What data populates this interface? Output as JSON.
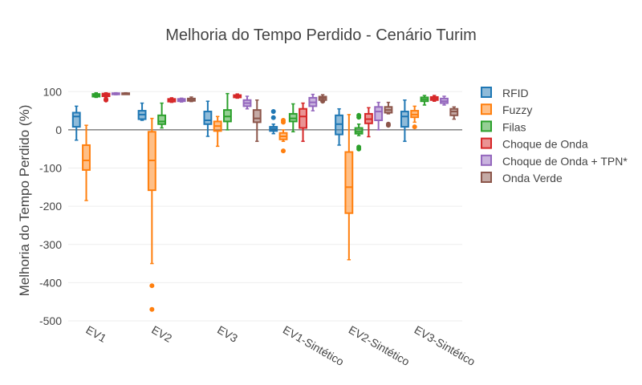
{
  "chart_data": {
    "type": "box",
    "title": "Melhoria do Tempo Perdido - Cenário Turim",
    "xlabel": "",
    "ylabel": "Melhoria do Tempo Perdido (%)",
    "ylim": [
      -500,
      130
    ],
    "yticks": [
      100,
      0,
      -100,
      -200,
      -300,
      -400,
      -500
    ],
    "grid": true,
    "legend_position": "right",
    "categories": [
      "EV1",
      "EV2",
      "EV3",
      "EV1-Sintético",
      "EV2-Sintético",
      "EV3-Sintético"
    ],
    "series": [
      {
        "name": "RFID",
        "color": "#1f77b4",
        "boxes": [
          {
            "min": -27,
            "q1": 8,
            "median": 35,
            "q3": 45,
            "max": 62,
            "outliers": []
          },
          {
            "min": 25,
            "q1": 28,
            "median": 40,
            "q3": 50,
            "max": 70,
            "outliers": []
          },
          {
            "min": -17,
            "q1": 15,
            "median": 25,
            "q3": 48,
            "max": 75,
            "outliers": []
          },
          {
            "min": -10,
            "q1": -3,
            "median": 3,
            "q3": 8,
            "max": 15,
            "outliers": [
              48,
              32
            ]
          },
          {
            "min": -40,
            "q1": -12,
            "median": 15,
            "q3": 38,
            "max": 55,
            "outliers": []
          },
          {
            "min": -30,
            "q1": 8,
            "median": 35,
            "q3": 48,
            "max": 78,
            "outliers": []
          }
        ]
      },
      {
        "name": "Fuzzy",
        "color": "#ff7f0e",
        "boxes": [
          {
            "min": -185,
            "q1": -105,
            "median": -80,
            "q3": -40,
            "max": 12,
            "outliers": []
          },
          {
            "min": -350,
            "q1": -158,
            "median": -80,
            "q3": -5,
            "max": 30,
            "outliers": [
              -408,
              -470
            ]
          },
          {
            "min": -43,
            "q1": -3,
            "median": 10,
            "q3": 22,
            "max": 35,
            "outliers": []
          },
          {
            "min": -30,
            "q1": -25,
            "median": -17,
            "q3": -8,
            "max": 0,
            "outliers": [
              -55,
              20,
              25
            ]
          },
          {
            "min": -340,
            "q1": -218,
            "median": -150,
            "q3": -58,
            "max": 40,
            "outliers": []
          },
          {
            "min": 20,
            "q1": 33,
            "median": 40,
            "q3": 50,
            "max": 62,
            "outliers": [
              8
            ]
          }
        ]
      },
      {
        "name": "Filas",
        "color": "#2ca02c",
        "boxes": [
          {
            "min": 85,
            "q1": 87,
            "median": 90,
            "q3": 94,
            "max": 97,
            "outliers": []
          },
          {
            "min": 5,
            "q1": 15,
            "median": 22,
            "q3": 38,
            "max": 70,
            "outliers": []
          },
          {
            "min": 0,
            "q1": 22,
            "median": 35,
            "q3": 52,
            "max": 95,
            "outliers": []
          },
          {
            "min": -5,
            "q1": 22,
            "median": 30,
            "q3": 42,
            "max": 68,
            "outliers": []
          },
          {
            "min": -15,
            "q1": -10,
            "median": -5,
            "q3": 5,
            "max": 15,
            "outliers": [
              -45,
              -50,
              33,
              38
            ]
          },
          {
            "min": 65,
            "q1": 75,
            "median": 80,
            "q3": 85,
            "max": 90,
            "outliers": []
          }
        ]
      },
      {
        "name": "Choque de Onda",
        "color": "#d62728",
        "boxes": [
          {
            "min": 85,
            "q1": 88,
            "median": 92,
            "q3": 95,
            "max": 97,
            "outliers": [
              78,
              80
            ]
          },
          {
            "min": 72,
            "q1": 74,
            "median": 78,
            "q3": 81,
            "max": 84,
            "outliers": []
          },
          {
            "min": 83,
            "q1": 85,
            "median": 88,
            "q3": 91,
            "max": 94,
            "outliers": []
          },
          {
            "min": -30,
            "q1": 5,
            "median": 35,
            "q3": 55,
            "max": 70,
            "outliers": []
          },
          {
            "min": -18,
            "q1": 17,
            "median": 28,
            "q3": 42,
            "max": 58,
            "outliers": []
          },
          {
            "min": 75,
            "q1": 78,
            "median": 82,
            "q3": 86,
            "max": 90,
            "outliers": []
          }
        ]
      },
      {
        "name": "Choque de Onda + TPN*",
        "color": "#9467bd",
        "boxes": [
          {
            "min": 92,
            "q1": 93,
            "median": 95,
            "q3": 96,
            "max": 97,
            "outliers": []
          },
          {
            "min": 73,
            "q1": 75,
            "median": 78,
            "q3": 81,
            "max": 83,
            "outliers": []
          },
          {
            "min": 55,
            "q1": 62,
            "median": 70,
            "q3": 78,
            "max": 88,
            "outliers": []
          },
          {
            "min": 50,
            "q1": 62,
            "median": 72,
            "q3": 84,
            "max": 93,
            "outliers": []
          },
          {
            "min": 0,
            "q1": 25,
            "median": 48,
            "q3": 60,
            "max": 72,
            "outliers": []
          },
          {
            "min": 65,
            "q1": 70,
            "median": 75,
            "q3": 82,
            "max": 88,
            "outliers": []
          }
        ]
      },
      {
        "name": "Onda Verde",
        "color": "#8c564b",
        "boxes": [
          {
            "min": 93,
            "q1": 94,
            "median": 95,
            "q3": 96,
            "max": 97,
            "outliers": []
          },
          {
            "min": 74,
            "q1": 76,
            "median": 78,
            "q3": 82,
            "max": 86,
            "outliers": []
          },
          {
            "min": -30,
            "q1": 20,
            "median": 30,
            "q3": 52,
            "max": 78,
            "outliers": []
          },
          {
            "min": 75,
            "q1": 78,
            "median": 83,
            "q3": 87,
            "max": 92,
            "outliers": [
              75
            ]
          },
          {
            "min": 42,
            "q1": 45,
            "median": 52,
            "q3": 60,
            "max": 72,
            "outliers": [
              12,
              15
            ]
          },
          {
            "min": 28,
            "q1": 38,
            "median": 48,
            "q3": 55,
            "max": 60,
            "outliers": []
          }
        ]
      }
    ]
  }
}
